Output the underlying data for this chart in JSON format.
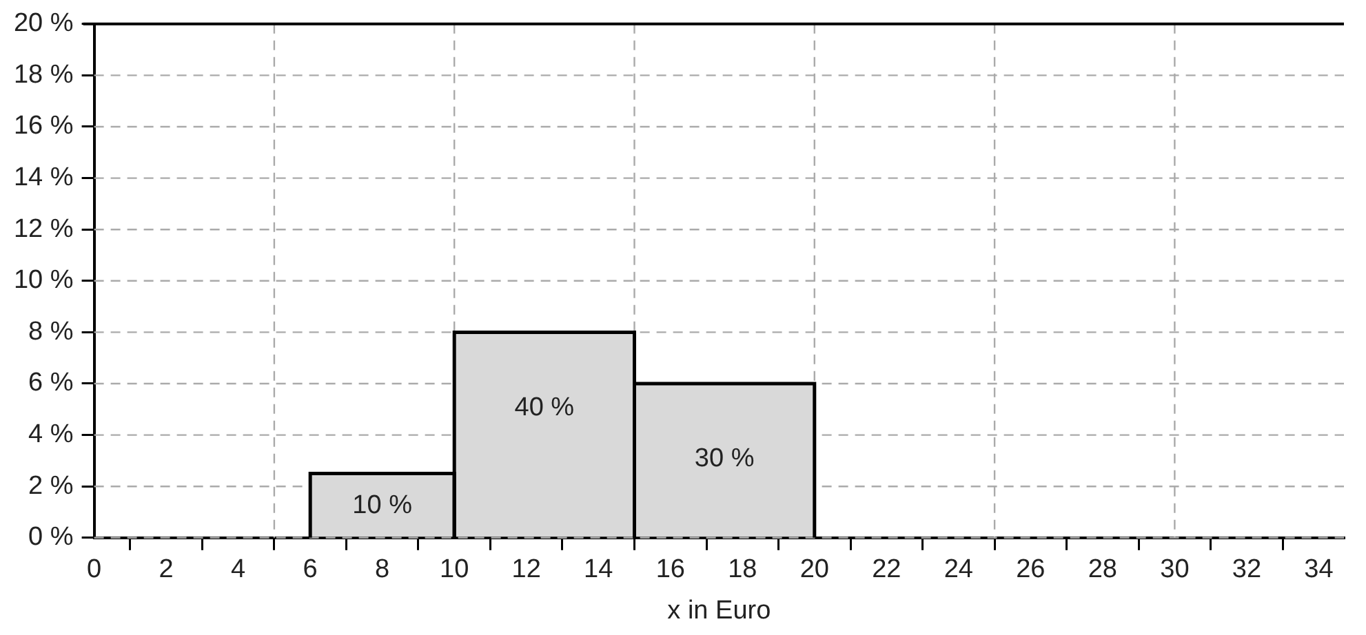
{
  "chart_data": {
    "type": "histogram",
    "xlabel": "x in Euro",
    "bins": [
      6,
      10,
      15,
      20
    ],
    "values": [
      2.5,
      8,
      6
    ],
    "annotations": [
      "10 %",
      "40 %",
      "30 %"
    ],
    "color": "#d9d9d9",
    "xlim": [
      0,
      34.7
    ],
    "xticks": [
      0,
      2,
      4,
      6,
      8,
      10,
      12,
      14,
      16,
      18,
      20,
      22,
      24,
      26,
      28,
      30,
      32,
      34
    ],
    "ylim": [
      0,
      20
    ],
    "yticks": [
      {
        "value": 0,
        "label": "0 %"
      },
      {
        "value": 2,
        "label": "2 %"
      },
      {
        "value": 4,
        "label": "4 %"
      },
      {
        "value": 6,
        "label": "6 %"
      },
      {
        "value": 8,
        "label": "8 %"
      },
      {
        "value": 10,
        "label": "10 %"
      },
      {
        "value": 12,
        "label": "12 %"
      },
      {
        "value": 14,
        "label": "14 %"
      },
      {
        "value": 16,
        "label": "16 %"
      },
      {
        "value": 18,
        "label": "18 %"
      },
      {
        "value": 20,
        "label": "20 %"
      }
    ],
    "grid": "y",
    "ref_lines": [
      {
        "axis": "x",
        "value": 5,
        "color": "#aaaaaa",
        "line_style": "dashed"
      },
      {
        "axis": "x",
        "value": 10,
        "color": "#aaaaaa",
        "line_style": "dashed"
      },
      {
        "axis": "x",
        "value": 15,
        "color": "#aaaaaa",
        "line_style": "dashed"
      },
      {
        "axis": "x",
        "value": 20,
        "color": "#aaaaaa",
        "line_style": "dashed"
      },
      {
        "axis": "x",
        "value": 25,
        "color": "#aaaaaa",
        "line_style": "dashed"
      },
      {
        "axis": "x",
        "value": 30,
        "color": "#aaaaaa",
        "line_style": "dashed"
      }
    ]
  }
}
